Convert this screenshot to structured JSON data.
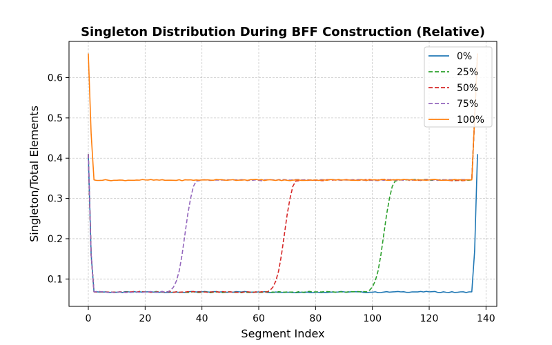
{
  "chart_data": {
    "type": "line",
    "title": "Singleton Distribution During BFF Construction (Relative)",
    "xlabel": "Segment Index",
    "ylabel": "Singleton/Total Elements",
    "xlim": [
      -6.8,
      143.8
    ],
    "ylim": [
      0.032,
      0.69
    ],
    "xticks": [
      0,
      20,
      40,
      60,
      80,
      100,
      120,
      140
    ],
    "yticks": [
      0.1,
      0.2,
      0.3,
      0.4,
      0.5,
      0.6
    ],
    "grid": true,
    "legend_position": "top-right",
    "low_level": 0.068,
    "high_level": 0.346,
    "series": [
      {
        "name": "0%",
        "color": "#1f77b4",
        "dash": "solid",
        "transition_start": 136,
        "points": [
          [
            0,
            0.41
          ],
          [
            1,
            0.16
          ],
          [
            2,
            0.068
          ],
          [
            10,
            0.067
          ],
          [
            20,
            0.068
          ],
          [
            30,
            0.067
          ],
          [
            40,
            0.068
          ],
          [
            50,
            0.068
          ],
          [
            60,
            0.068
          ],
          [
            70,
            0.067
          ],
          [
            80,
            0.067
          ],
          [
            90,
            0.068
          ],
          [
            100,
            0.067
          ],
          [
            110,
            0.068
          ],
          [
            120,
            0.068
          ],
          [
            130,
            0.067
          ],
          [
            135,
            0.068
          ],
          [
            136,
            0.17
          ],
          [
            137,
            0.41
          ]
        ]
      },
      {
        "name": "25%",
        "color": "#2ca02c",
        "dash": "dashed",
        "transition_start": 98,
        "points": [
          [
            0,
            0.41
          ],
          [
            1,
            0.16
          ],
          [
            2,
            0.068
          ],
          [
            10,
            0.067
          ],
          [
            20,
            0.068
          ],
          [
            40,
            0.067
          ],
          [
            60,
            0.067
          ],
          [
            80,
            0.068
          ],
          [
            98,
            0.068
          ],
          [
            99,
            0.072
          ],
          [
            100,
            0.08
          ],
          [
            101,
            0.095
          ],
          [
            102,
            0.12
          ],
          [
            103,
            0.16
          ],
          [
            104,
            0.21
          ],
          [
            105,
            0.26
          ],
          [
            106,
            0.3
          ],
          [
            107,
            0.33
          ],
          [
            108,
            0.343
          ],
          [
            110,
            0.346
          ],
          [
            120,
            0.346
          ],
          [
            130,
            0.345
          ],
          [
            135,
            0.346
          ],
          [
            136,
            0.5
          ],
          [
            137,
            0.66
          ]
        ]
      },
      {
        "name": "50%",
        "color": "#d62728",
        "dash": "dashed",
        "transition_start": 63,
        "points": [
          [
            0,
            0.41
          ],
          [
            1,
            0.16
          ],
          [
            2,
            0.068
          ],
          [
            10,
            0.067
          ],
          [
            20,
            0.068
          ],
          [
            40,
            0.068
          ],
          [
            60,
            0.067
          ],
          [
            63,
            0.068
          ],
          [
            64,
            0.072
          ],
          [
            65,
            0.08
          ],
          [
            66,
            0.095
          ],
          [
            67,
            0.12
          ],
          [
            68,
            0.16
          ],
          [
            69,
            0.21
          ],
          [
            70,
            0.26
          ],
          [
            71,
            0.3
          ],
          [
            72,
            0.33
          ],
          [
            73,
            0.343
          ],
          [
            75,
            0.346
          ],
          [
            80,
            0.345
          ],
          [
            90,
            0.346
          ],
          [
            100,
            0.346
          ],
          [
            110,
            0.346
          ],
          [
            120,
            0.346
          ],
          [
            130,
            0.345
          ],
          [
            135,
            0.346
          ],
          [
            136,
            0.5
          ],
          [
            137,
            0.66
          ]
        ]
      },
      {
        "name": "75%",
        "color": "#9467bd",
        "dash": "dashed",
        "transition_start": 28,
        "points": [
          [
            0,
            0.41
          ],
          [
            1,
            0.16
          ],
          [
            2,
            0.068
          ],
          [
            10,
            0.067
          ],
          [
            20,
            0.068
          ],
          [
            28,
            0.068
          ],
          [
            29,
            0.072
          ],
          [
            30,
            0.08
          ],
          [
            31,
            0.095
          ],
          [
            32,
            0.12
          ],
          [
            33,
            0.16
          ],
          [
            34,
            0.21
          ],
          [
            35,
            0.26
          ],
          [
            36,
            0.3
          ],
          [
            37,
            0.33
          ],
          [
            38,
            0.343
          ],
          [
            40,
            0.346
          ],
          [
            50,
            0.346
          ],
          [
            60,
            0.345
          ],
          [
            70,
            0.346
          ],
          [
            80,
            0.346
          ],
          [
            90,
            0.346
          ],
          [
            100,
            0.345
          ],
          [
            110,
            0.346
          ],
          [
            120,
            0.346
          ],
          [
            130,
            0.346
          ],
          [
            135,
            0.346
          ],
          [
            136,
            0.5
          ],
          [
            137,
            0.66
          ]
        ]
      },
      {
        "name": "100%",
        "color": "#ff7f0e",
        "dash": "solid",
        "transition_start": 1,
        "points": [
          [
            0,
            0.66
          ],
          [
            1,
            0.46
          ],
          [
            2,
            0.346
          ],
          [
            10,
            0.345
          ],
          [
            20,
            0.346
          ],
          [
            30,
            0.345
          ],
          [
            40,
            0.346
          ],
          [
            50,
            0.346
          ],
          [
            60,
            0.346
          ],
          [
            70,
            0.345
          ],
          [
            80,
            0.346
          ],
          [
            90,
            0.346
          ],
          [
            100,
            0.346
          ],
          [
            110,
            0.346
          ],
          [
            120,
            0.346
          ],
          [
            130,
            0.346
          ],
          [
            135,
            0.346
          ],
          [
            136,
            0.5
          ],
          [
            137,
            0.66
          ]
        ]
      }
    ]
  }
}
